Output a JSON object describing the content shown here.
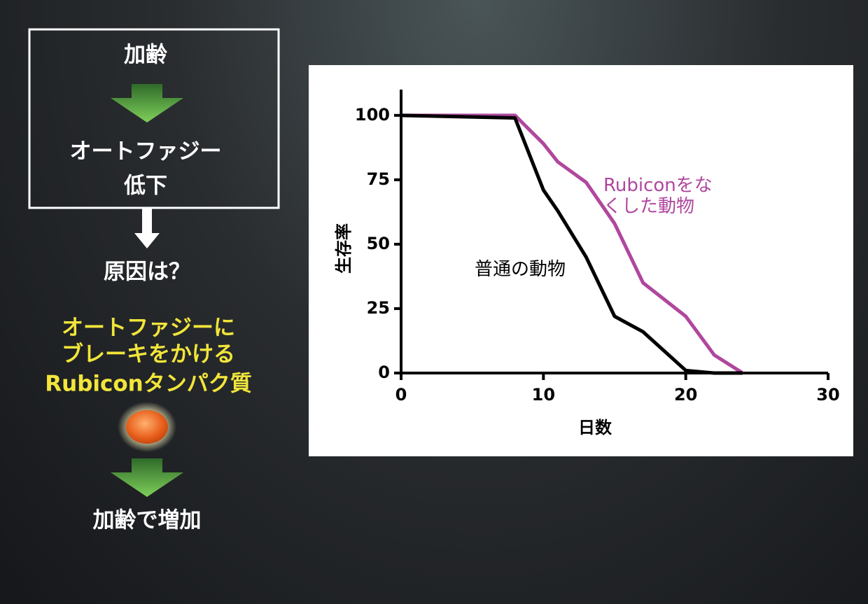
{
  "diagram": {
    "top_box": [
      "加齢",
      "オートファジー",
      "低下"
    ],
    "question": "原因は？",
    "cause": [
      "オートファジーに",
      "ブレーキをかける",
      "Rubiconタンパク質"
    ],
    "result": "加齢で増加"
  },
  "chart_data": {
    "type": "line",
    "x_label": "日数",
    "y_label": "生存率",
    "x": [
      0,
      8,
      10,
      11,
      13,
      15,
      17,
      20,
      22,
      24
    ],
    "series": [
      {
        "name": "普通の動物",
        "color": "#000000",
        "values": [
          100,
          99,
          71,
          63,
          45,
          22,
          16,
          1,
          0,
          0
        ]
      },
      {
        "name": "Rubiconをなくした動物",
        "color": "#b0479e",
        "values": [
          100,
          100,
          89,
          82,
          74,
          58,
          35,
          22,
          7,
          0
        ]
      }
    ],
    "xlim": [
      0,
      30
    ],
    "xticks": [
      0,
      10,
      20,
      30
    ],
    "ylim": [
      0,
      110
    ],
    "yticks": [
      0,
      25,
      50,
      75,
      100
    ]
  }
}
